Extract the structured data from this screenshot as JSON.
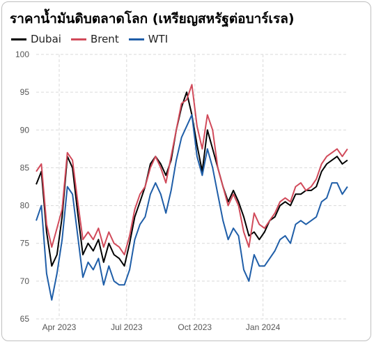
{
  "chart_data": {
    "type": "line",
    "title": "ราคาน้ำมันดิบตลาดโลก (เหรียญสหรัฐต่อบาร์เรล)",
    "xlabel": "",
    "ylabel": "",
    "ylim": [
      65,
      100
    ],
    "yticks": [
      65,
      70,
      75,
      80,
      85,
      90,
      95,
      100
    ],
    "xlim": [
      "2023-03-01",
      "2024-04-25"
    ],
    "xticks": [
      {
        "date": "2023-04-01",
        "label": "Apr 2023"
      },
      {
        "date": "2023-07-01",
        "label": "Jul 2023"
      },
      {
        "date": "2023-10-01",
        "label": "Oct 2023"
      },
      {
        "date": "2024-01-01",
        "label": "Jan 2024"
      }
    ],
    "grid": true,
    "legend_position": "top-left",
    "x": [
      "2023-03-01",
      "2023-03-08",
      "2023-03-15",
      "2023-03-22",
      "2023-03-29",
      "2023-04-05",
      "2023-04-12",
      "2023-04-19",
      "2023-04-26",
      "2023-05-03",
      "2023-05-10",
      "2023-05-17",
      "2023-05-24",
      "2023-05-31",
      "2023-06-07",
      "2023-06-14",
      "2023-06-21",
      "2023-06-28",
      "2023-07-05",
      "2023-07-12",
      "2023-07-19",
      "2023-07-26",
      "2023-08-02",
      "2023-08-09",
      "2023-08-16",
      "2023-08-23",
      "2023-08-30",
      "2023-09-06",
      "2023-09-13",
      "2023-09-20",
      "2023-09-27",
      "2023-10-04",
      "2023-10-11",
      "2023-10-18",
      "2023-10-25",
      "2023-11-01",
      "2023-11-08",
      "2023-11-15",
      "2023-11-22",
      "2023-11-29",
      "2023-12-06",
      "2023-12-13",
      "2023-12-20",
      "2023-12-27",
      "2024-01-03",
      "2024-01-10",
      "2024-01-17",
      "2024-01-24",
      "2024-01-31",
      "2024-02-07",
      "2024-02-14",
      "2024-02-21",
      "2024-02-28",
      "2024-03-06",
      "2024-03-13",
      "2024-03-20",
      "2024-03-27",
      "2024-04-03",
      "2024-04-10",
      "2024-04-17",
      "2024-04-24"
    ],
    "series": [
      {
        "name": "Dubai",
        "color": "#000000",
        "values": [
          82.8,
          84.5,
          76.5,
          72.0,
          73.5,
          78.5,
          86.5,
          85.0,
          79.0,
          73.5,
          75.0,
          74.0,
          75.5,
          72.5,
          75.0,
          73.5,
          73.0,
          72.0,
          75.0,
          78.5,
          80.5,
          82.5,
          85.5,
          86.5,
          85.5,
          84.0,
          86.0,
          90.0,
          93.0,
          95.0,
          92.0,
          88.0,
          84.5,
          90.0,
          87.5,
          85.0,
          82.5,
          80.5,
          82.0,
          80.5,
          78.5,
          76.0,
          76.5,
          75.5,
          76.5,
          78.0,
          78.5,
          80.0,
          80.5,
          80.0,
          81.5,
          81.5,
          82.0,
          82.0,
          82.5,
          84.5,
          85.5,
          86.0,
          86.5,
          85.5,
          86.0
        ]
      },
      {
        "name": "Brent",
        "color": "#d14a5a",
        "values": [
          84.5,
          85.5,
          77.5,
          74.5,
          77.0,
          79.5,
          87.0,
          86.0,
          80.5,
          75.5,
          76.5,
          75.5,
          77.0,
          74.5,
          76.5,
          75.0,
          74.5,
          73.5,
          76.0,
          79.5,
          81.5,
          82.5,
          85.0,
          86.5,
          85.0,
          83.0,
          86.5,
          90.0,
          93.5,
          94.0,
          96.0,
          90.5,
          87.5,
          92.0,
          90.0,
          85.0,
          82.5,
          80.0,
          81.5,
          80.0,
          76.5,
          74.5,
          79.0,
          77.5,
          77.0,
          78.0,
          79.0,
          80.5,
          81.0,
          80.5,
          82.5,
          83.0,
          82.0,
          82.5,
          83.5,
          85.5,
          86.5,
          87.0,
          87.5,
          86.5,
          87.5
        ]
      },
      {
        "name": "WTI",
        "color": "#1f5ea8",
        "values": [
          78.0,
          80.0,
          71.0,
          67.5,
          71.0,
          75.5,
          82.5,
          81.5,
          76.0,
          70.5,
          72.5,
          71.5,
          73.0,
          69.5,
          72.0,
          70.0,
          69.5,
          69.5,
          71.5,
          75.5,
          77.5,
          78.5,
          81.5,
          83.0,
          81.5,
          79.0,
          82.0,
          86.0,
          89.0,
          90.5,
          92.0,
          86.5,
          84.0,
          87.5,
          85.0,
          81.5,
          78.0,
          75.5,
          77.0,
          76.0,
          71.5,
          70.0,
          73.5,
          72.0,
          72.0,
          73.0,
          74.0,
          75.5,
          76.0,
          75.0,
          77.5,
          78.0,
          77.5,
          78.0,
          78.5,
          80.5,
          81.0,
          83.0,
          83.0,
          81.5,
          82.5
        ]
      }
    ]
  }
}
